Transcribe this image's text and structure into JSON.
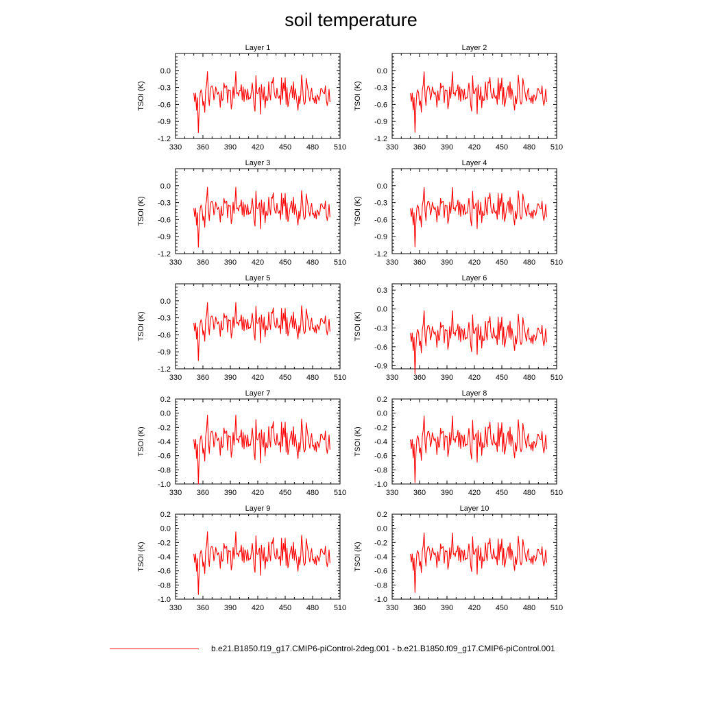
{
  "title": "soil temperature",
  "legend": {
    "label": "b.e21.B1850.f19_g17.CMIP6-piControl-2deg.001 - b.e21.B1850.f09_g17.CMIP6-piControl.001",
    "color": "#ff0000"
  },
  "chart_data": {
    "type": "line",
    "grid": false,
    "x": {
      "start": 350,
      "end": 499,
      "label": ""
    },
    "xlim": [
      330,
      510
    ],
    "xticks": [
      330,
      360,
      390,
      420,
      450,
      480,
      510
    ],
    "ylabel": "TSOI  (K)",
    "line_color": "#ff0000",
    "series": [
      0.0,
      -0.15,
      0.0,
      -0.3,
      -0.08,
      -0.7,
      -0.25,
      0.0,
      0.06,
      0.0,
      -0.22,
      -0.14,
      -0.34,
      0.05,
      0.15,
      0.38,
      -0.05,
      -0.22,
      0.03,
      0.12,
      0.13,
      0.07,
      -0.12,
      -0.04,
      0.11,
      0.04,
      -0.02,
      0.02,
      -0.05,
      -0.25,
      0.04,
      -0.13,
      -0.11,
      0.18,
      0.09,
      0.12,
      0.13,
      -0.17,
      0.06,
      0.04,
      0.05,
      -0.28,
      -0.18,
      0.11,
      -0.09,
      0.08,
      0.38,
      -0.01,
      0.01,
      -0.05,
      0.05,
      0.04,
      0.15,
      -0.12,
      0.11,
      -0.15,
      0.07,
      0.03,
      -0.12,
      0.07,
      -0.11,
      -0.08,
      -0.09,
      0.03,
      0.18,
      0.01,
      -0.22,
      -0.32,
      0.31,
      0.0,
      -0.01,
      0.06,
      0.1,
      -0.37,
      0.15,
      -0.03,
      -0.12,
      0.11,
      -0.26,
      -0.05,
      -0.13,
      -0.12,
      0.2,
      -0.01,
      -0.12,
      0.2,
      0.18,
      0.28,
      0.02,
      -0.07,
      -0.09,
      0.09,
      -0.05,
      -0.09,
      -0.04,
      -0.2,
      0.27,
      -0.11,
      0.18,
      0.04,
      0.27,
      -0.2,
      0.1,
      -0.24,
      -0.15,
      -0.02,
      0.06,
      0.13,
      -0.08,
      0.2,
      -0.11,
      0.08,
      -0.03,
      -0.18,
      -0.3,
      -0.05,
      -0.19,
      -0.04,
      0.32,
      0.13,
      -0.13,
      -0.2,
      -0.16,
      0.26,
      0.15,
      0.05,
      -0.06,
      -0.14,
      0.02,
      0.09,
      -0.11,
      -0.09,
      -0.17,
      -0.05,
      -0.19,
      -0.03,
      -0.06,
      -0.13,
      -0.06,
      0.08,
      0.08,
      0.03,
      0.0,
      -0.01,
      0.13,
      -0.12,
      -0.22,
      -0.12,
      0.07,
      -0.16
    ],
    "panels": [
      {
        "title": "Layer 1",
        "ylim": [
          -1.2,
          0.3
        ],
        "yticks": [
          "-1.2",
          "-0.9",
          "-0.6",
          "-0.3",
          "0.0"
        ],
        "mean": -0.4,
        "scale": 1.0
      },
      {
        "title": "Layer 2",
        "ylim": [
          -1.2,
          0.3
        ],
        "yticks": [
          "-1.2",
          "-0.9",
          "-0.6",
          "-0.3",
          "0.0"
        ],
        "mean": -0.4,
        "scale": 0.99
      },
      {
        "title": "Layer 3",
        "ylim": [
          -1.2,
          0.3
        ],
        "yticks": [
          "-1.2",
          "-0.9",
          "-0.6",
          "-0.3",
          "0.0"
        ],
        "mean": -0.4,
        "scale": 0.98
      },
      {
        "title": "Layer 4",
        "ylim": [
          -1.2,
          0.3
        ],
        "yticks": [
          "-1.2",
          "-0.9",
          "-0.6",
          "-0.3",
          "0.0"
        ],
        "mean": -0.4,
        "scale": 0.97
      },
      {
        "title": "Layer 5",
        "ylim": [
          -1.2,
          0.3
        ],
        "yticks": [
          "-1.2",
          "-0.9",
          "-0.6",
          "-0.3",
          "0.0"
        ],
        "mean": -0.39,
        "scale": 0.95
      },
      {
        "title": "Layer 6",
        "ylim": [
          -0.95,
          0.4
        ],
        "yticks": [
          "-0.9",
          "-0.6",
          "-0.3",
          "0.0",
          "0.3"
        ],
        "mean": -0.38,
        "scale": 0.93
      },
      {
        "title": "Layer 7",
        "ylim": [
          -1.0,
          0.2
        ],
        "yticks": [
          "-1.0",
          "-0.8",
          "-0.6",
          "-0.4",
          "-0.2",
          "0.0",
          "0.2"
        ],
        "mean": -0.37,
        "scale": 0.9
      },
      {
        "title": "Layer 8",
        "ylim": [
          -1.0,
          0.2
        ],
        "yticks": [
          "-1.0",
          "-0.8",
          "-0.6",
          "-0.4",
          "-0.2",
          "0.0",
          "0.2"
        ],
        "mean": -0.37,
        "scale": 0.87
      },
      {
        "title": "Layer 9",
        "ylim": [
          -1.0,
          0.2
        ],
        "yticks": [
          "-1.0",
          "-0.8",
          "-0.6",
          "-0.4",
          "-0.2",
          "0.0",
          "0.2"
        ],
        "mean": -0.36,
        "scale": 0.82
      },
      {
        "title": "Layer 10",
        "ylim": [
          -1.0,
          0.2
        ],
        "yticks": [
          "-1.0",
          "-0.8",
          "-0.6",
          "-0.4",
          "-0.2",
          "0.0",
          "0.2"
        ],
        "mean": -0.36,
        "scale": 0.78
      }
    ]
  }
}
